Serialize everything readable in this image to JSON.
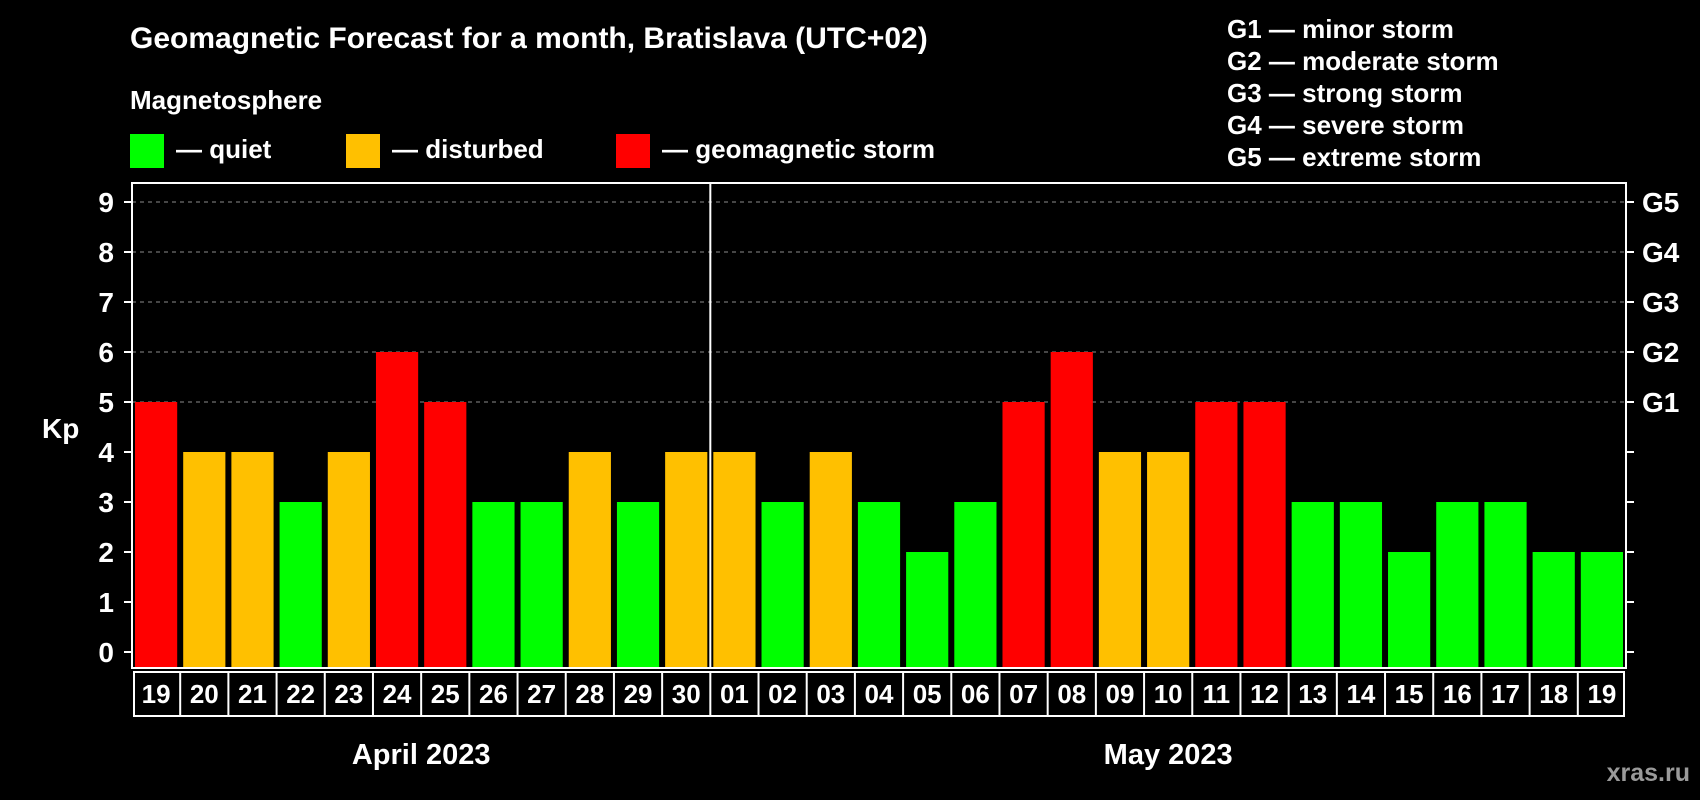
{
  "chart_data": {
    "type": "bar",
    "title": "Geomagnetic Forecast for a month, Bratislava (UTC+02)",
    "legend_heading": "Magnetosphere",
    "legend": [
      {
        "label": "— quiet",
        "color": "#00ff00"
      },
      {
        "label": "— disturbed",
        "color": "#ffc000"
      },
      {
        "label": "— geomagnetic storm",
        "color": "#ff0000"
      }
    ],
    "storm_scale": [
      "G1 — minor storm",
      "G2 — moderate storm",
      "G3 — strong storm",
      "G4 — severe storm",
      "G5 — extreme storm"
    ],
    "ylabel": "Kp",
    "ylim": [
      0,
      9
    ],
    "yticks": [
      "0",
      "1",
      "2",
      "3",
      "4",
      "5",
      "6",
      "7",
      "8",
      "9"
    ],
    "right_axis": [
      {
        "kp": 5,
        "label": "G1"
      },
      {
        "kp": 6,
        "label": "G2"
      },
      {
        "kp": 7,
        "label": "G3"
      },
      {
        "kp": 8,
        "label": "G4"
      },
      {
        "kp": 9,
        "label": "G5"
      }
    ],
    "grid": "dashed, Kp 5 to 9",
    "categories": [
      "19",
      "20",
      "21",
      "22",
      "23",
      "24",
      "25",
      "26",
      "27",
      "28",
      "29",
      "30",
      "01",
      "02",
      "03",
      "04",
      "05",
      "06",
      "07",
      "08",
      "09",
      "10",
      "11",
      "12",
      "13",
      "14",
      "15",
      "16",
      "17",
      "18",
      "19"
    ],
    "values": [
      5,
      4,
      4,
      3,
      4,
      6,
      5,
      3,
      3,
      4,
      3,
      4,
      4,
      3,
      4,
      3,
      2,
      3,
      5,
      6,
      4,
      4,
      5,
      5,
      3,
      3,
      2,
      3,
      3,
      2,
      2
    ],
    "months": [
      {
        "label": "April 2023",
        "start": 0,
        "count": 12
      },
      {
        "label": "May 2023",
        "start": 12,
        "count": 19
      }
    ],
    "colors": {
      "quiet": "#00ff00",
      "disturbed": "#ffc000",
      "storm": "#ff0000"
    }
  },
  "watermark": "xras.ru"
}
